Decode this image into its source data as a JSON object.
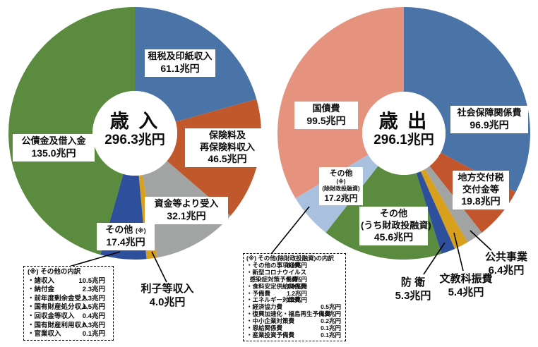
{
  "chart_data": [
    {
      "type": "pie",
      "variant": "donut",
      "title": "歳入",
      "total_label": "296.3兆円",
      "unit": "兆円",
      "legend": "none",
      "slices": [
        {
          "label": "租税及印紙収入",
          "value": 61.1,
          "color": "#4a74a7"
        },
        {
          "label": "保険料及再保険料収入",
          "value": 46.5,
          "color": "#c0582b"
        },
        {
          "label": "資金等より受入",
          "value": 32.1,
          "color": "#a2a3a3"
        },
        {
          "label": "利子等収入",
          "value": 4.0,
          "color": "#d8a01c"
        },
        {
          "label": "その他(※)",
          "value": 17.4,
          "color": "#2e4f9b"
        },
        {
          "label": "公債金及借入金",
          "value": 135.0,
          "color": "#5a8b3e"
        }
      ]
    },
    {
      "type": "pie",
      "variant": "donut",
      "title": "歳出",
      "total_label": "296.1兆円",
      "unit": "兆円",
      "legend": "none",
      "slices": [
        {
          "label": "社会保障関係費",
          "value": 96.9,
          "color": "#4a74a7"
        },
        {
          "label": "地方交付税交付金等",
          "value": 19.8,
          "color": "#c2552b"
        },
        {
          "label": "公共事業",
          "value": 6.4,
          "color": "#a2a3a3"
        },
        {
          "label": "文教科振費",
          "value": 5.4,
          "color": "#d8a01c"
        },
        {
          "label": "防衛",
          "value": 5.3,
          "color": "#2e4f9b"
        },
        {
          "label": "その他(うち財政投融資)",
          "value": 45.6,
          "color": "#5a8b3e"
        },
        {
          "label": "その他(※)(除財政投融資)",
          "value": 17.2,
          "color": "#a9c1de"
        },
        {
          "label": "国債費",
          "value": 99.5,
          "color": "#e5937f"
        }
      ]
    }
  ],
  "labels": {
    "rev_center_1": "歳 入",
    "rev_center_2": "296.3兆円",
    "rev_tax_1": "租税及印紙収入",
    "rev_tax_2": "61.1兆円",
    "rev_ins_1": "保険料及",
    "rev_ins_2": "再保険料収入",
    "rev_ins_3": "46.5兆円",
    "rev_funds_1": "資金等より受入",
    "rev_funds_2": "32.1兆円",
    "rev_other_1a": "その他",
    "rev_other_1b": "(※)",
    "rev_other_2": "17.4兆円",
    "rev_interest_1": "利子等収入",
    "rev_interest_2": "4.0兆円",
    "rev_bonds_1": "公債金及借入金",
    "rev_bonds_2": "135.0兆円",
    "exp_center_1": "歳 出",
    "exp_center_2": "296.1兆円",
    "exp_social_1": "社会保障関係費",
    "exp_social_2": "96.9兆円",
    "exp_local_1": "地方交付税",
    "exp_local_2": "交付金等",
    "exp_local_3": "19.8兆円",
    "exp_public_1": "公共事業",
    "exp_public_2": "6.4兆円",
    "exp_edu_1": "文教科振費",
    "exp_edu_2": "5.4兆円",
    "exp_def_1": "防 衛",
    "exp_def_2": "5.3兆円",
    "exp_filp_1": "その他",
    "exp_filp_2": "(うち財政投融資)",
    "exp_filp_3": "45.6兆円",
    "exp_otherex_1": "その他",
    "exp_otherex_2": "(※)",
    "exp_otherex_3": "(除財政投融資)",
    "exp_otherex_4": "17.2兆円",
    "exp_bond_1": "国債費",
    "exp_bond_2": "99.5兆円"
  },
  "notes": {
    "note_rev": {
      "title": "(※) その他の内訳",
      "items": [
        {
          "label": "・諸収入",
          "value": "10.5兆円",
          "col": "a"
        },
        {
          "label": "・納付金",
          "value": "2.3兆円",
          "col": "a"
        },
        {
          "label": "・前年度剰余金受入",
          "value": "2.3兆円",
          "col": "a"
        },
        {
          "label": "・国有財産処分収入",
          "value": "1.5兆円",
          "col": "a"
        },
        {
          "label": "・回収金等収入",
          "value": "0.4兆円",
          "col": "a"
        },
        {
          "label": "・国有財産利用収入",
          "value": "0.3兆円",
          "col": "a"
        },
        {
          "label": "・官業収入",
          "value": "0.1兆円",
          "col": "a"
        }
      ]
    },
    "note_exp": {
      "title": "(※) その他(除財政投融資)の内訳",
      "items": [
        {
          "label": "・その他の事項経費",
          "value": "6.9兆円",
          "col": "a"
        },
        {
          "label": "・新型コロナウイルス",
          "value": "",
          "col": "a"
        },
        {
          "label": "  感染症対策予備費",
          "value": "5.0兆円",
          "col": "a"
        },
        {
          "label": "・食料安定供給関係費",
          "value": "1.9兆円",
          "col": "a"
        },
        {
          "label": "・予備費",
          "value": "1.2兆円",
          "col": "a"
        },
        {
          "label": "・エネルギー対策費",
          "value": "1.2兆円",
          "col": "a"
        },
        {
          "label": "・経済協力費",
          "value": "0.5兆円",
          "col": "b"
        },
        {
          "label": "・復興加速化・福島再生予備費",
          "value": "0.2兆円",
          "col": "b"
        },
        {
          "label": "・中小企業対策費",
          "value": "0.2兆円",
          "col": "b"
        },
        {
          "label": "・恩給関係費",
          "value": "0.1兆円",
          "col": "b"
        },
        {
          "label": "・産業投資予備費",
          "value": "0.1兆円",
          "col": "b"
        }
      ]
    }
  }
}
